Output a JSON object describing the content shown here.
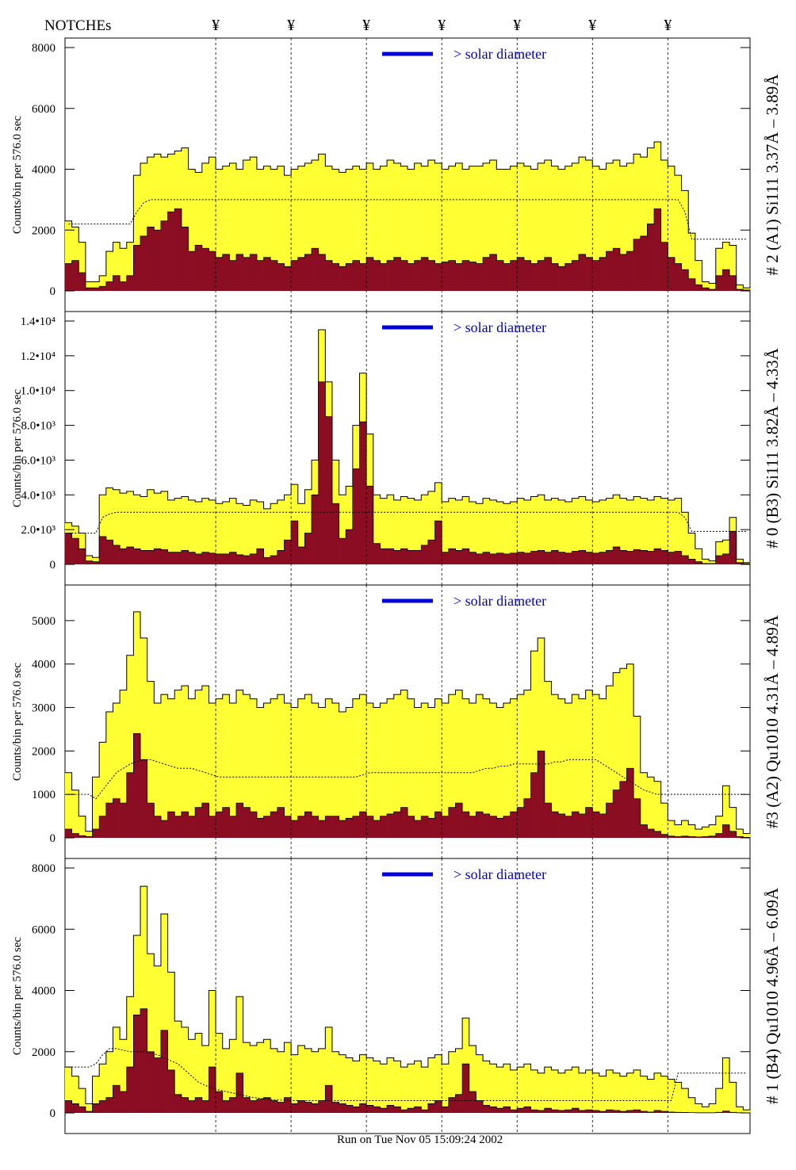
{
  "header": {
    "notches_label": "NOTCHEs",
    "notch_symbol": "¥",
    "notch_positions": [
      0.22,
      0.33,
      0.44,
      0.55,
      0.66,
      0.77,
      0.88
    ]
  },
  "footer": {
    "timestamp": "Run on Tue Nov 05 15:09:24 2002"
  },
  "colors": {
    "total_fill": "#ffff33",
    "flare_fill": "#8b0d22",
    "solar_bar": "#0000dd",
    "solar_text": "#0000cc",
    "dotted_line": "#000000"
  },
  "chart_data": [
    {
      "type": "area",
      "panel": "A1",
      "title": "# 2 (A1) Si111  3.37Å – 3.89Å",
      "ylabel": "Counts/bin per    576.0 sec",
      "solar_label": "> solar diameter",
      "ylim": [
        0,
        8000
      ],
      "yticks": [
        0,
        2000,
        4000,
        6000,
        8000
      ],
      "ytick_labels": [
        "0",
        "2000",
        "4000",
        "6000",
        "8000"
      ],
      "xlim": [
        0,
        1
      ],
      "nbins": 100,
      "total": [
        2300,
        2100,
        1600,
        300,
        300,
        500,
        1300,
        1600,
        1400,
        1600,
        3800,
        4200,
        4400,
        4500,
        4400,
        4500,
        4600,
        4700,
        4000,
        3900,
        4200,
        4400,
        4000,
        4100,
        4200,
        4000,
        4300,
        4400,
        4000,
        4100,
        4000,
        4100,
        3800,
        4000,
        4100,
        4200,
        4300,
        4500,
        4100,
        4000,
        3900,
        4000,
        4100,
        4000,
        4200,
        4000,
        4100,
        4300,
        4200,
        4100,
        4000,
        4200,
        4100,
        4300,
        4200,
        4000,
        4100,
        4200,
        4000,
        4100,
        4100,
        4200,
        4300,
        4000,
        4000,
        4100,
        4200,
        4100,
        4000,
        4200,
        4300,
        4100,
        4000,
        4100,
        4200,
        4400,
        4300,
        4100,
        4000,
        4200,
        4300,
        4100,
        4200,
        4500,
        4400,
        4700,
        4900,
        4300,
        4100,
        3800,
        3300,
        1900,
        1000,
        300,
        250,
        1400,
        1600,
        1500,
        200,
        100
      ],
      "flare": [
        900,
        1000,
        600,
        100,
        100,
        150,
        300,
        500,
        300,
        500,
        1500,
        1800,
        2100,
        2000,
        2300,
        2600,
        2700,
        2100,
        1300,
        1500,
        1400,
        1300,
        1100,
        1200,
        1000,
        1200,
        1100,
        1200,
        1000,
        1100,
        1000,
        900,
        800,
        1000,
        1100,
        1200,
        1400,
        1200,
        1000,
        900,
        800,
        900,
        1000,
        900,
        1100,
        1000,
        900,
        1000,
        1100,
        1000,
        900,
        1000,
        1100,
        1000,
        900,
        950,
        1000,
        900,
        1000,
        950,
        900,
        1100,
        1200,
        1000,
        900,
        1000,
        1100,
        1000,
        900,
        1000,
        1100,
        900,
        800,
        900,
        1000,
        1200,
        1100,
        1000,
        1100,
        1300,
        1400,
        1200,
        1300,
        1700,
        1800,
        2200,
        2700,
        1600,
        1100,
        900,
        700,
        400,
        200,
        100,
        50,
        500,
        700,
        500,
        50,
        30
      ],
      "background": [
        2200,
        2200,
        2200,
        2200,
        2200,
        2200,
        2200,
        2200,
        2200,
        2200,
        2600,
        2900,
        3000,
        3000,
        3000,
        3000,
        3000,
        3000,
        3000,
        3000,
        3000,
        3000,
        3000,
        3000,
        3000,
        3000,
        3000,
        3000,
        3000,
        3000,
        3000,
        3000,
        3000,
        3000,
        3000,
        3000,
        3000,
        3000,
        3000,
        3000,
        3000,
        3000,
        3000,
        3000,
        3000,
        3000,
        3000,
        3000,
        3000,
        3000,
        3000,
        3000,
        3000,
        3000,
        3000,
        3000,
        3000,
        3000,
        3000,
        3000,
        3000,
        3000,
        3000,
        3000,
        3000,
        3000,
        3000,
        3000,
        3000,
        3000,
        3000,
        3000,
        3000,
        3000,
        3000,
        3000,
        3000,
        3000,
        3000,
        3000,
        3000,
        3000,
        3000,
        3000,
        3000,
        3000,
        3000,
        3000,
        3000,
        3000,
        2600,
        1700,
        1700,
        1700,
        1700,
        1700,
        1700,
        1700,
        1700,
        1700
      ]
    },
    {
      "type": "area",
      "panel": "B3",
      "title": "# 0 (B3) Si111  3.82Å – 4.33Å",
      "ylabel": "Counts/bin per    576.0 sec",
      "solar_label": "> solar diameter",
      "ylim": [
        0,
        14000
      ],
      "yticks": [
        0,
        2000,
        4000,
        6000,
        8000,
        10000,
        12000,
        14000
      ],
      "ytick_labels": [
        "0",
        "2.0•10³",
        "4.0•10³",
        "6.0•10³",
        "8.0•10³",
        "1.0•10⁴",
        "1.2•10⁴",
        "1.4•10⁴"
      ],
      "xlim": [
        0,
        1
      ],
      "nbins": 100,
      "total": [
        2400,
        2200,
        1800,
        500,
        400,
        4000,
        4400,
        4300,
        4100,
        4200,
        4000,
        3900,
        4300,
        4100,
        4200,
        3700,
        3800,
        3900,
        3700,
        3600,
        3800,
        3700,
        3500,
        3600,
        3800,
        3500,
        3400,
        3700,
        3600,
        3200,
        3500,
        3700,
        4000,
        4600,
        3500,
        4300,
        6000,
        13500,
        10500,
        6000,
        4000,
        4500,
        8000,
        11000,
        7500,
        4000,
        3800,
        4000,
        3700,
        3900,
        3800,
        3700,
        4000,
        4200,
        4700,
        3600,
        3800,
        3700,
        3900,
        3600,
        3500,
        3800,
        3700,
        3600,
        3500,
        3600,
        3800,
        3700,
        3900,
        4000,
        3700,
        3800,
        3700,
        3600,
        3800,
        3900,
        3700,
        3600,
        3700,
        3800,
        4000,
        3800,
        3700,
        3900,
        3800,
        3700,
        3900,
        3800,
        3700,
        3800,
        3000,
        1800,
        900,
        300,
        200,
        1300,
        1400,
        2700,
        300,
        100
      ],
      "flare": [
        1800,
        1500,
        900,
        200,
        150,
        1600,
        1400,
        1100,
        900,
        1000,
        900,
        800,
        800,
        900,
        850,
        700,
        700,
        800,
        700,
        600,
        700,
        650,
        600,
        600,
        700,
        550,
        500,
        600,
        900,
        400,
        500,
        800,
        1400,
        2500,
        1000,
        1800,
        4000,
        10500,
        8500,
        3500,
        1500,
        2000,
        5500,
        8200,
        4500,
        1200,
        900,
        900,
        800,
        900,
        800,
        800,
        1100,
        1400,
        2500,
        700,
        900,
        800,
        900,
        700,
        600,
        700,
        600,
        650,
        600,
        650,
        700,
        650,
        750,
        800,
        700,
        800,
        700,
        650,
        750,
        800,
        700,
        650,
        700,
        800,
        1000,
        800,
        750,
        850,
        800,
        750,
        900,
        800,
        700,
        750,
        500,
        300,
        150,
        50,
        50,
        500,
        600,
        1900,
        100,
        40
      ],
      "background": [
        1800,
        1800,
        1800,
        1800,
        1800,
        2700,
        2900,
        3000,
        3000,
        3000,
        3000,
        3000,
        3000,
        3000,
        3000,
        3000,
        3000,
        3000,
        3000,
        3000,
        3000,
        3000,
        3000,
        3000,
        3000,
        3000,
        3000,
        3000,
        3000,
        3000,
        3000,
        3000,
        3000,
        3000,
        3000,
        3000,
        3000,
        3000,
        3000,
        3000,
        3000,
        3000,
        3000,
        3000,
        3000,
        3000,
        3000,
        3000,
        3000,
        3000,
        3000,
        3000,
        3000,
        3000,
        3000,
        3000,
        3000,
        3000,
        3000,
        3000,
        3000,
        3000,
        3000,
        3000,
        3000,
        3000,
        3000,
        3000,
        3000,
        3000,
        3000,
        3000,
        3000,
        3000,
        3000,
        3000,
        3000,
        3000,
        3000,
        3000,
        3000,
        3000,
        3000,
        3000,
        3000,
        3000,
        3000,
        3000,
        3000,
        3000,
        2700,
        1900,
        1900,
        1900,
        1900,
        1900,
        1900,
        1900,
        1900,
        1900
      ]
    },
    {
      "type": "area",
      "panel": "A2",
      "title": "#3 (A2) Qu1010  4.31Å – 4.89Å",
      "ylabel": "Counts/bin per    576.0 sec",
      "solar_label": "> solar diameter",
      "ylim": [
        0,
        5600
      ],
      "yticks": [
        0,
        1000,
        2000,
        3000,
        4000,
        5000
      ],
      "ytick_labels": [
        "0",
        "1000",
        "2000",
        "3000",
        "4000",
        "5000"
      ],
      "xlim": [
        0,
        1
      ],
      "nbins": 100,
      "total": [
        1500,
        1100,
        500,
        150,
        1400,
        2200,
        2900,
        3100,
        3400,
        4200,
        5200,
        4600,
        3600,
        3100,
        3300,
        3200,
        3400,
        3500,
        3200,
        3400,
        3500,
        3100,
        3200,
        3300,
        3100,
        3400,
        3300,
        3200,
        3000,
        3100,
        3200,
        3300,
        3100,
        3000,
        3200,
        3300,
        3100,
        3000,
        3200,
        3100,
        2900,
        3000,
        3200,
        3300,
        3100,
        3000,
        3100,
        3200,
        3300,
        3400,
        3200,
        3000,
        3100,
        3000,
        3200,
        3100,
        3300,
        3400,
        3200,
        3100,
        3300,
        3200,
        3100,
        3000,
        3100,
        3200,
        3300,
        3400,
        4300,
        4600,
        3600,
        3300,
        3200,
        3100,
        3300,
        3200,
        3400,
        3300,
        3200,
        3500,
        3800,
        3900,
        4000,
        2800,
        1500,
        1400,
        1300,
        800,
        400,
        300,
        400,
        300,
        200,
        250,
        300,
        500,
        1200,
        700,
        200,
        100
      ],
      "flare": [
        200,
        100,
        50,
        30,
        200,
        500,
        800,
        900,
        800,
        1500,
        2400,
        1800,
        800,
        500,
        400,
        600,
        500,
        600,
        500,
        700,
        800,
        500,
        600,
        700,
        500,
        800,
        700,
        600,
        450,
        500,
        600,
        700,
        500,
        400,
        500,
        600,
        500,
        400,
        500,
        500,
        400,
        450,
        500,
        600,
        500,
        400,
        500,
        550,
        600,
        700,
        500,
        400,
        500,
        450,
        600,
        500,
        700,
        800,
        600,
        500,
        600,
        550,
        500,
        450,
        500,
        600,
        700,
        900,
        1500,
        2000,
        800,
        600,
        550,
        500,
        600,
        550,
        700,
        600,
        550,
        800,
        1100,
        1300,
        1600,
        900,
        300,
        200,
        150,
        80,
        40,
        30,
        40,
        30,
        20,
        30,
        40,
        100,
        300,
        150,
        30,
        10
      ],
      "background": [
        1000,
        1000,
        1000,
        1000,
        900,
        1100,
        1300,
        1500,
        1600,
        1700,
        1750,
        1800,
        1800,
        1750,
        1700,
        1650,
        1600,
        1600,
        1600,
        1550,
        1500,
        1450,
        1400,
        1400,
        1400,
        1400,
        1400,
        1400,
        1400,
        1400,
        1400,
        1400,
        1400,
        1400,
        1400,
        1400,
        1400,
        1400,
        1400,
        1400,
        1400,
        1400,
        1400,
        1450,
        1500,
        1500,
        1500,
        1500,
        1500,
        1500,
        1500,
        1500,
        1500,
        1500,
        1500,
        1500,
        1500,
        1500,
        1500,
        1500,
        1550,
        1600,
        1600,
        1650,
        1650,
        1700,
        1700,
        1700,
        1700,
        1700,
        1700,
        1750,
        1750,
        1800,
        1800,
        1800,
        1800,
        1800,
        1700,
        1600,
        1500,
        1400,
        1300,
        1200,
        1100,
        1050,
        1000,
        1000,
        1000,
        1000,
        1000,
        1000,
        1000,
        1000,
        1000,
        1000,
        1000,
        1000,
        1000,
        1000
      ]
    },
    {
      "type": "area",
      "panel": "B4",
      "title": "# 1 (B4) Qu1010 4.96Å – 6.09Å",
      "ylabel": "Counts/bin per    576.0 sec",
      "solar_label": "> solar diameter",
      "ylim": [
        0,
        8000
      ],
      "yticks": [
        0,
        2000,
        4000,
        6000,
        8000
      ],
      "ytick_labels": [
        "0",
        "2000",
        "4000",
        "6000",
        "8000"
      ],
      "xlim": [
        0,
        1
      ],
      "nbins": 100,
      "total": [
        1500,
        1200,
        800,
        300,
        1200,
        1600,
        2000,
        2800,
        2400,
        3800,
        5800,
        7400,
        5200,
        4800,
        6500,
        4600,
        3000,
        2800,
        2400,
        2600,
        2200,
        4000,
        2600,
        2100,
        2400,
        3800,
        2300,
        2200,
        2300,
        2400,
        2100,
        2000,
        2300,
        1900,
        2200,
        2100,
        2000,
        2100,
        2800,
        2000,
        1900,
        1800,
        1700,
        1900,
        1800,
        1700,
        1600,
        1800,
        1700,
        1500,
        1600,
        1700,
        1500,
        1800,
        1900,
        1600,
        2000,
        2100,
        3100,
        2200,
        1900,
        1700,
        1600,
        1500,
        1600,
        1400,
        1500,
        1600,
        1400,
        1300,
        1500,
        1400,
        1300,
        1400,
        1500,
        1300,
        1400,
        1300,
        1200,
        1400,
        1300,
        1200,
        1300,
        1400,
        1200,
        1100,
        1300,
        1200,
        1100,
        1000,
        800,
        500,
        300,
        200,
        300,
        800,
        1800,
        1000,
        200,
        100
      ],
      "flare": [
        400,
        300,
        200,
        50,
        300,
        400,
        500,
        900,
        700,
        1500,
        3200,
        3400,
        2000,
        1800,
        2700,
        1400,
        600,
        500,
        400,
        500,
        400,
        1500,
        700,
        400,
        500,
        1300,
        500,
        400,
        450,
        500,
        400,
        350,
        500,
        300,
        400,
        350,
        300,
        400,
        900,
        350,
        300,
        250,
        200,
        300,
        250,
        200,
        150,
        250,
        200,
        100,
        150,
        200,
        100,
        300,
        400,
        200,
        500,
        600,
        1600,
        700,
        400,
        250,
        200,
        150,
        200,
        100,
        150,
        200,
        100,
        80,
        150,
        100,
        80,
        100,
        150,
        80,
        100,
        80,
        50,
        100,
        80,
        50,
        80,
        100,
        50,
        30,
        80,
        50,
        30,
        20,
        15,
        10,
        5,
        5,
        5,
        20,
        60,
        20,
        5,
        2
      ],
      "background": [
        1500,
        1500,
        1500,
        1500,
        1600,
        1900,
        2100,
        2100,
        2050,
        2000,
        2000,
        2000,
        1950,
        1900,
        1800,
        1700,
        1600,
        1400,
        1200,
        1000,
        900,
        800,
        750,
        700,
        650,
        600,
        550,
        500,
        480,
        450,
        430,
        420,
        410,
        400,
        400,
        400,
        400,
        400,
        400,
        400,
        400,
        400,
        400,
        400,
        400,
        400,
        400,
        400,
        400,
        400,
        400,
        400,
        400,
        400,
        400,
        400,
        400,
        400,
        400,
        400,
        400,
        400,
        400,
        400,
        400,
        400,
        400,
        400,
        400,
        400,
        400,
        400,
        400,
        400,
        400,
        400,
        400,
        400,
        400,
        400,
        400,
        400,
        400,
        400,
        400,
        400,
        400,
        400,
        400,
        1300,
        1300,
        1300,
        1300,
        1300,
        1300,
        1300,
        1300,
        1300,
        1300,
        1300
      ]
    }
  ]
}
